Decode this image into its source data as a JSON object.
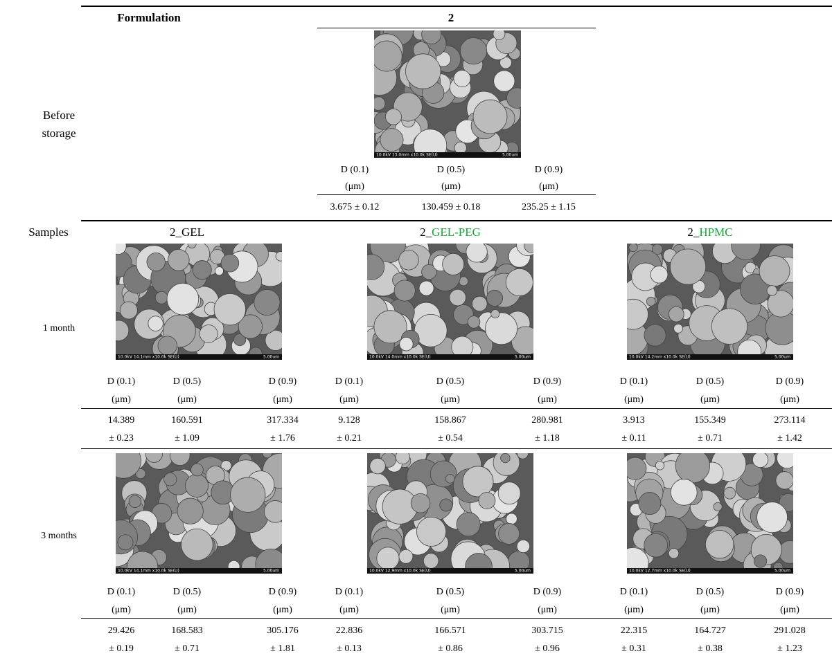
{
  "header": {
    "formulation_label": "Formulation",
    "formulation": "2"
  },
  "before_storage": {
    "label": "Before storage",
    "image": {
      "info": "10.0kV 13.0mm x10.0k SE(U)",
      "scale": "5.00um"
    },
    "columns": [
      {
        "label": "D (0.1)",
        "unit": "(μm)",
        "value": "3.675 ± 0.12"
      },
      {
        "label": "D (0.5)",
        "unit": "(μm)",
        "value": "130.459 ± 0.18"
      },
      {
        "label": "D (0.9)",
        "unit": "(μm)",
        "value": "235.25 ± 1.15"
      }
    ]
  },
  "samples_label": "Samples",
  "samples": [
    {
      "prefix": "2_",
      "name": "GEL",
      "highlight": false
    },
    {
      "prefix": "2_",
      "name": "GEL-PEG",
      "highlight": true
    },
    {
      "prefix": "2_",
      "name": "HPMC",
      "highlight": true
    }
  ],
  "timepoints": [
    {
      "label": "1 month",
      "cells": [
        {
          "image": {
            "info": "10.0kV 14.1mm x10.0k SE(U)",
            "scale": "5.00um"
          },
          "columns": [
            {
              "label": "D (0.1)",
              "unit": "(μm)",
              "value": "14.389",
              "sd": "± 0.23"
            },
            {
              "label": "D (0.5)",
              "unit": "(μm)",
              "value": "160.591",
              "sd": "± 1.09"
            },
            {
              "label": "D (0.9)",
              "unit": "(μm)",
              "value": "317.334",
              "sd": "± 1.76"
            }
          ]
        },
        {
          "image": {
            "info": "10.0kV 14.0mm x10.0k SE(U)",
            "scale": "5.00um"
          },
          "columns": [
            {
              "label": "D (0.1)",
              "unit": "(μm)",
              "value": "9.128",
              "sd": "± 0.21"
            },
            {
              "label": "D (0.5)",
              "unit": "(μm)",
              "value": "158.867",
              "sd": "± 0.54"
            },
            {
              "label": "D (0.9)",
              "unit": "(μm)",
              "value": "280.981",
              "sd": "± 1.18"
            }
          ]
        },
        {
          "image": {
            "info": "10.0kV 14.2mm x10.0k SE(U)",
            "scale": "5.00um"
          },
          "columns": [
            {
              "label": "D (0.1)",
              "unit": "(μm)",
              "value": "3.913",
              "sd": "± 0.11"
            },
            {
              "label": "D (0.5)",
              "unit": "(μm)",
              "value": "155.349",
              "sd": "± 0.71"
            },
            {
              "label": "D (0.9)",
              "unit": "(μm)",
              "value": "273.114",
              "sd": "± 1.42"
            }
          ]
        }
      ]
    },
    {
      "label": "3 months",
      "cells": [
        {
          "image": {
            "info": "10.0kV 14.1mm x10.0k SE(U)",
            "scale": "5.00um"
          },
          "columns": [
            {
              "label": "D (0.1)",
              "unit": "(μm)",
              "value": "29.426",
              "sd": "± 0.19"
            },
            {
              "label": "D (0.5)",
              "unit": "(μm)",
              "value": "168.583",
              "sd": "± 0.71"
            },
            {
              "label": "D (0.9)",
              "unit": "(μm)",
              "value": "305.176",
              "sd": "± 1.81"
            }
          ]
        },
        {
          "image": {
            "info": "10.0kV 12.9mm x10.0k SE(U)",
            "scale": "5.00um"
          },
          "columns": [
            {
              "label": "D (0.1)",
              "unit": "(μm)",
              "value": "22.836",
              "sd": "± 0.13"
            },
            {
              "label": "D (0.5)",
              "unit": "(μm)",
              "value": "166.571",
              "sd": "± 0.86"
            },
            {
              "label": "D (0.9)",
              "unit": "(μm)",
              "value": "303.715",
              "sd": "± 0.96"
            }
          ]
        },
        {
          "image": {
            "info": "10.0kV 12.7mm x10.0k SE(U)",
            "scale": "5.00um"
          },
          "columns": [
            {
              "label": "D (0.1)",
              "unit": "(μm)",
              "value": "22.315",
              "sd": "± 0.31"
            },
            {
              "label": "D (0.5)",
              "unit": "(μm)",
              "value": "164.727",
              "sd": "± 0.38"
            },
            {
              "label": "D (0.9)",
              "unit": "(μm)",
              "value": "291.028",
              "sd": "± 1.23"
            }
          ]
        }
      ]
    }
  ]
}
